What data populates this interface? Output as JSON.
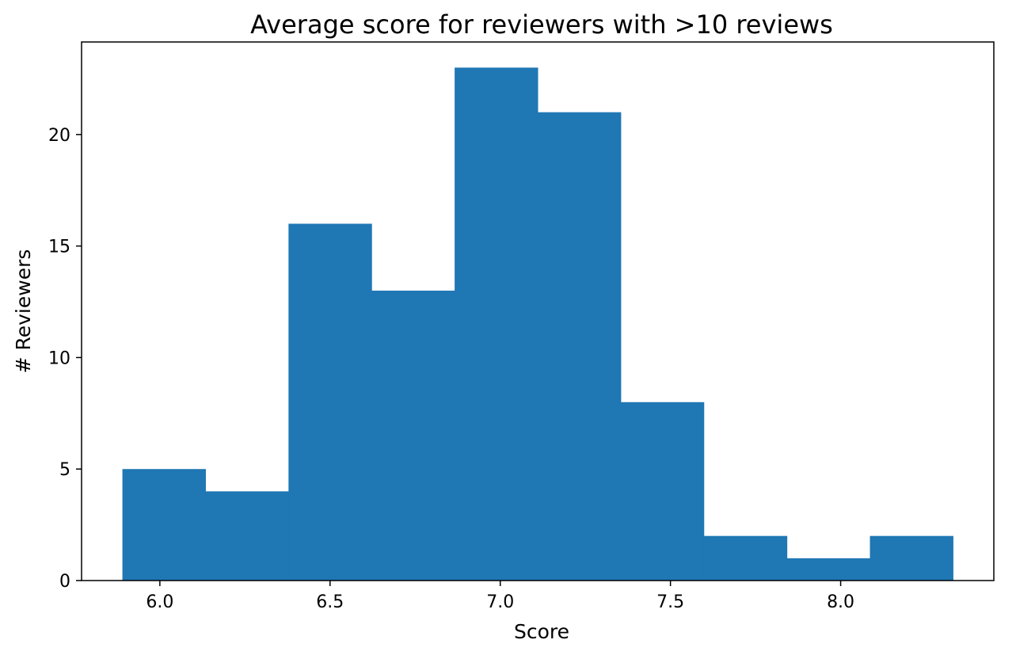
{
  "chart_data": {
    "type": "bar",
    "subtype": "histogram",
    "title": "Average score for reviewers with >10 reviews",
    "xlabel": "Score",
    "ylabel": "# Reviewers",
    "bin_edges": [
      5.89,
      6.134,
      6.378,
      6.622,
      6.866,
      7.11,
      7.354,
      7.598,
      7.842,
      8.086,
      8.33
    ],
    "values": [
      5,
      4,
      16,
      13,
      23,
      21,
      8,
      2,
      1,
      2
    ],
    "xlim": [
      5.77,
      8.45
    ],
    "ylim": [
      0,
      24.15
    ],
    "xticks": [
      {
        "value": 6.0,
        "label": "6.0"
      },
      {
        "value": 6.5,
        "label": "6.5"
      },
      {
        "value": 7.0,
        "label": "7.0"
      },
      {
        "value": 7.5,
        "label": "7.5"
      },
      {
        "value": 8.0,
        "label": "8.0"
      }
    ],
    "yticks": [
      {
        "value": 0,
        "label": "0"
      },
      {
        "value": 5,
        "label": "5"
      },
      {
        "value": 10,
        "label": "10"
      },
      {
        "value": 15,
        "label": "15"
      },
      {
        "value": 20,
        "label": "20"
      }
    ],
    "bar_color": "#1f77b4",
    "grid": false,
    "legend": "none"
  }
}
